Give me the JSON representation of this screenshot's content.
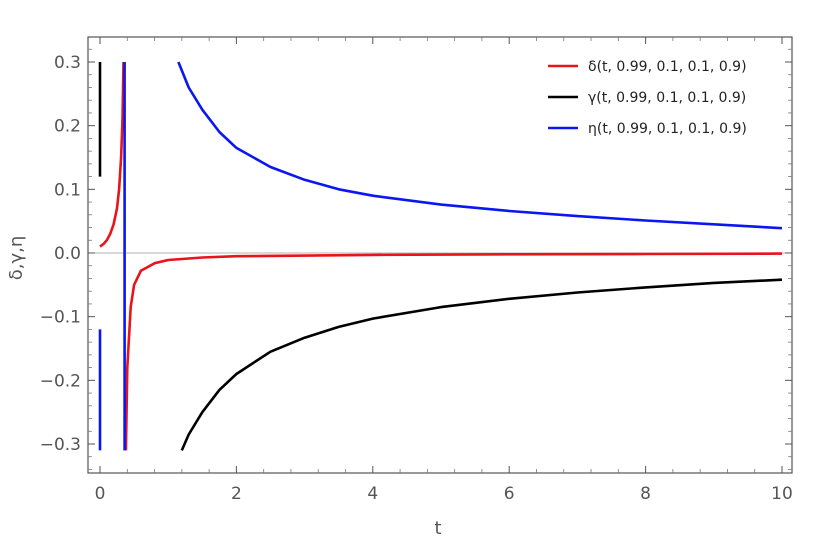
{
  "chart_data": {
    "type": "line",
    "title": "",
    "xlabel": "t",
    "ylabel": "δ,γ,η",
    "xlim": [
      -0.2,
      10.2
    ],
    "ylim": [
      -0.34,
      0.32
    ],
    "x_ticks": [
      0,
      2,
      4,
      6,
      8,
      10
    ],
    "x_tick_labels": [
      "0",
      "2",
      "4",
      "6",
      "8",
      "10"
    ],
    "y_ticks": [
      -0.3,
      -0.2,
      -0.1,
      0.0,
      0.1,
      0.2,
      0.3
    ],
    "y_tick_labels": [
      "−0.3",
      "−0.2",
      "−0.1",
      "0.0",
      "0.1",
      "0.2",
      "0.3"
    ],
    "grid": false,
    "legend_position": "top-right",
    "series": [
      {
        "name": "δ(t, 0.99, 0.1, 0.1, 0.9)",
        "color": "#e8141b",
        "segments": [
          [
            [
              0.0,
              0.01
            ],
            [
              0.05,
              0.014
            ],
            [
              0.1,
              0.02
            ],
            [
              0.15,
              0.03
            ],
            [
              0.2,
              0.045
            ],
            [
              0.25,
              0.07
            ],
            [
              0.28,
              0.1
            ],
            [
              0.31,
              0.15
            ],
            [
              0.33,
              0.21
            ],
            [
              0.345,
              0.3
            ]
          ],
          [
            [
              0.38,
              -0.31
            ],
            [
              0.4,
              -0.18
            ],
            [
              0.45,
              -0.085
            ],
            [
              0.5,
              -0.05
            ],
            [
              0.6,
              -0.028
            ],
            [
              0.8,
              -0.016
            ],
            [
              1.0,
              -0.011
            ],
            [
              1.5,
              -0.007
            ],
            [
              2.0,
              -0.005
            ],
            [
              4.0,
              -0.003
            ],
            [
              6.0,
              -0.002
            ],
            [
              8.0,
              -0.0015
            ],
            [
              10.0,
              -0.001
            ]
          ]
        ]
      },
      {
        "name": "γ(t, 0.99, 0.1, 0.1, 0.9)",
        "color": "#000000",
        "segments": [
          [
            [
              0.0,
              0.12
            ],
            [
              0.0,
              0.3
            ]
          ],
          [
            [
              1.2,
              -0.31
            ],
            [
              1.3,
              -0.285
            ],
            [
              1.5,
              -0.25
            ],
            [
              1.75,
              -0.215
            ],
            [
              2.0,
              -0.19
            ],
            [
              2.5,
              -0.155
            ],
            [
              3.0,
              -0.133
            ],
            [
              3.5,
              -0.116
            ],
            [
              4.0,
              -0.103
            ],
            [
              5.0,
              -0.085
            ],
            [
              6.0,
              -0.072
            ],
            [
              7.0,
              -0.062
            ],
            [
              8.0,
              -0.054
            ],
            [
              9.0,
              -0.047
            ],
            [
              10.0,
              -0.042
            ]
          ]
        ]
      },
      {
        "name": "η(t, 0.99, 0.1, 0.1, 0.9)",
        "color": "#0a17f0",
        "segments": [
          [
            [
              0.0,
              -0.12
            ],
            [
              0.0,
              -0.31
            ]
          ],
          [
            [
              0.36,
              -0.31
            ],
            [
              0.36,
              0.3
            ]
          ],
          [
            [
              1.15,
              0.3
            ],
            [
              1.3,
              0.26
            ],
            [
              1.5,
              0.225
            ],
            [
              1.75,
              0.19
            ],
            [
              2.0,
              0.165
            ],
            [
              2.5,
              0.135
            ],
            [
              3.0,
              0.115
            ],
            [
              3.5,
              0.1
            ],
            [
              4.0,
              0.09
            ],
            [
              5.0,
              0.076
            ],
            [
              6.0,
              0.066
            ],
            [
              7.0,
              0.058
            ],
            [
              8.0,
              0.051
            ],
            [
              9.0,
              0.045
            ],
            [
              10.0,
              0.039
            ]
          ]
        ]
      }
    ]
  }
}
